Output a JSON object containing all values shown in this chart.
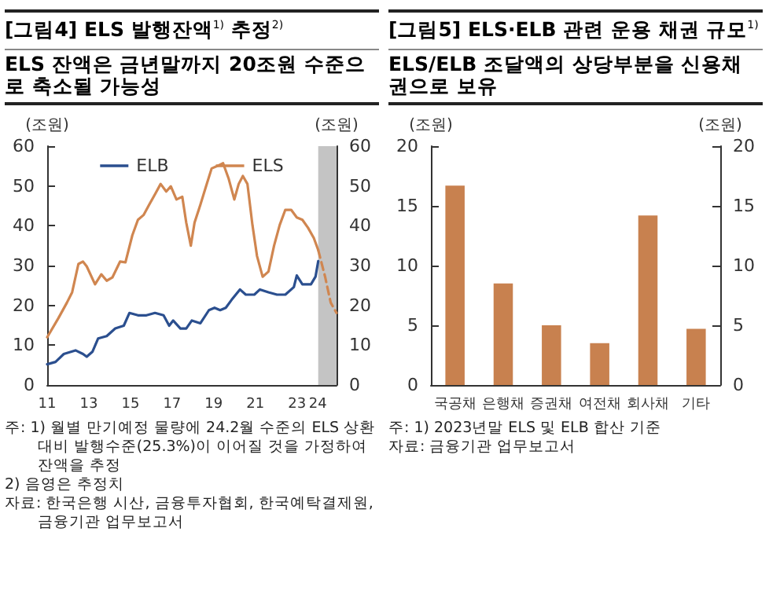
{
  "chart_data": [
    {
      "type": "line",
      "title": "[그림4] ELS 발행잔액$^{1)}$ 추정$^{2)}$",
      "subtitle": "ELS 잔액은 금년말까지 20조원 수준으로 축소될 가능성",
      "ylabel": "(조원)",
      "y2label": "(조원)",
      "xlim": [
        2011,
        2024.9
      ],
      "xticks": [
        {
          "value": 2011,
          "label": "11"
        },
        {
          "value": 2013,
          "label": "13"
        },
        {
          "value": 2015,
          "label": "15"
        },
        {
          "value": 2017,
          "label": "17"
        },
        {
          "value": 2019,
          "label": "19"
        },
        {
          "value": 2021,
          "label": "21"
        },
        {
          "value": 2023,
          "label": "23"
        },
        {
          "value": 2024,
          "label": "24"
        }
      ],
      "ylim": [
        0,
        60
      ],
      "yticks": [
        0,
        10,
        20,
        30,
        40,
        50,
        60
      ],
      "y2lim": [
        0,
        60
      ],
      "y2ticks": [
        0,
        10,
        20,
        30,
        40,
        50,
        60
      ],
      "legend": "top",
      "marker": "none",
      "grid": false,
      "bands": [
        {
          "axis": "x",
          "from": 2024.02,
          "to": 2024.9,
          "color": "#c4c4c4"
        }
      ],
      "series": [
        {
          "name": "ELB",
          "color": "#2b4f8f",
          "line_style": "solid",
          "x": [
            2011,
            2011.4,
            2011.8,
            2012.36,
            2012.72,
            2012.9,
            2013.18,
            2013.45,
            2013.86,
            2014.27,
            2014.68,
            2014.95,
            2015.36,
            2015.77,
            2016.18,
            2016.59,
            2016.86,
            2017.05,
            2017.4,
            2017.68,
            2017.95,
            2018.36,
            2018.77,
            2019.04,
            2019.31,
            2019.58,
            2019.86,
            2020.26,
            2020.54,
            2020.95,
            2021.22,
            2021.63,
            2022.04,
            2022.44,
            2022.85,
            2022.99,
            2023.26,
            2023.67,
            2023.89,
            2024.02
          ],
          "values": [
            5.2,
            5.8,
            7.8,
            8.7,
            7.8,
            7.1,
            8.4,
            11.7,
            12.3,
            14.2,
            14.9,
            18.1,
            17.5,
            17.5,
            18.1,
            17.5,
            14.9,
            16.2,
            14.2,
            14.2,
            16.2,
            15.5,
            18.8,
            19.4,
            18.8,
            19.4,
            21.4,
            24,
            22.7,
            22.7,
            24,
            23.3,
            22.7,
            22.7,
            24.6,
            27.5,
            25.3,
            25.3,
            27.2,
            31.1
          ]
        },
        {
          "name": "ELS",
          "color": "#d08650",
          "line_style": "solid",
          "x": [
            2011,
            2011.54,
            2011.95,
            2012.2,
            2012.5,
            2012.72,
            2012.9,
            2013.3,
            2013.6,
            2013.86,
            2014.13,
            2014.5,
            2014.76,
            2015.09,
            2015.36,
            2015.63,
            2015.9,
            2016.18,
            2016.45,
            2016.72,
            2016.94,
            2017.21,
            2017.49,
            2017.68,
            2017.9,
            2018.08,
            2018.36,
            2018.63,
            2018.9,
            2019.17,
            2019.45,
            2019.72,
            2019.99,
            2020.2,
            2020.4,
            2020.62,
            2020.86,
            2021.08,
            2021.35,
            2021.63,
            2021.9,
            2022.17,
            2022.44,
            2022.72,
            2022.99,
            2023.26,
            2023.53,
            2023.81,
            2024.02
          ],
          "values": [
            12,
            16.8,
            20.7,
            23.3,
            30.4,
            31,
            29.8,
            25.3,
            27.8,
            26.2,
            27,
            31,
            30.8,
            37.6,
            41.5,
            42.7,
            45.3,
            47.9,
            50.5,
            48.6,
            49.9,
            46.6,
            47.3,
            40.8,
            35,
            40.8,
            45.3,
            49.9,
            54.4,
            55,
            55.7,
            51.8,
            46.6,
            50.5,
            52.5,
            50.5,
            40.2,
            32.4,
            27.2,
            28.5,
            35,
            40.2,
            44,
            44,
            42.1,
            41.5,
            39.5,
            36.9,
            33.9
          ]
        },
        {
          "color": "#d08650",
          "line_style": "dashed",
          "x": [
            2024.02,
            2024.35,
            2024.62,
            2024.9
          ],
          "values": [
            33.9,
            27.2,
            20.7,
            18.1
          ]
        }
      ],
      "annotations": [
        "주: 1) 월별 만기예정 물량에 24.2월 수준의 ELS 상환대비 발행수준(25.3%)이 이어질 것을 가정하여 잔액을 추정",
        "2) 음영은 추정치",
        "자료: 한국은행 시산, 금융투자협회, 한국예탁결제원, 금융기관 업무보고서"
      ]
    },
    {
      "type": "bar",
      "title": "[그림5] ELS·ELB 관련 운용 채권 규모$^{1)}$",
      "subtitle": "ELS/ELB 조달액의 상당부분을 신용채권으로 보유",
      "ylabel": "(조원)",
      "y2label": "(조원)",
      "categories": [
        "국공채",
        "은행채",
        "증권채",
        "여전채",
        "회사채",
        "기타"
      ],
      "values": [
        16.7,
        8.5,
        5,
        3.5,
        14.2,
        4.7
      ],
      "color": "#c8814f",
      "ylim": [
        0,
        20
      ],
      "yticks": [
        0,
        5,
        10,
        15,
        20
      ],
      "y2lim": [
        0,
        20
      ],
      "y2ticks": [
        0,
        5,
        10,
        15,
        20
      ],
      "grid": false,
      "annotations": [
        "주: 1) 2023년말 ELS 및 ELB 합산 기준",
        "자료: 금융기관 업무보고서"
      ]
    }
  ]
}
